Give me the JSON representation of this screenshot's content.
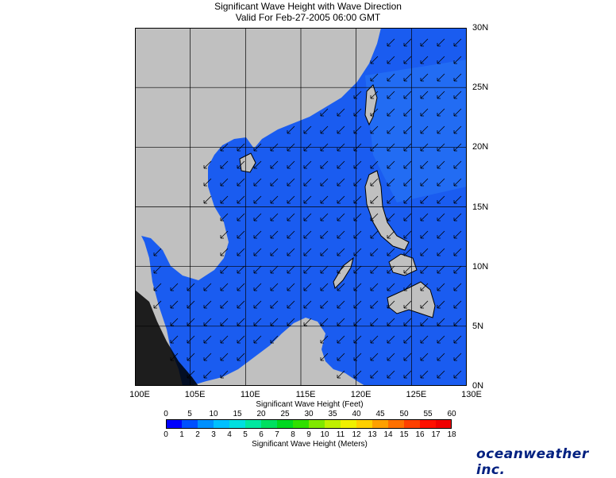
{
  "title": "Significant Wave Height with Wave Direction",
  "subtitle": "Valid For Feb-27-2005 06:00 GMT",
  "map": {
    "lat_labels": [
      "30N",
      "25N",
      "20N",
      "15N",
      "10N",
      "5N",
      "0N"
    ],
    "lon_labels": [
      "100E",
      "105E",
      "110E",
      "115E",
      "120E",
      "125E",
      "130E"
    ],
    "lon_range": [
      100,
      130
    ],
    "lat_range": [
      0,
      30
    ],
    "land_color": "#c0c0c0",
    "ocean_color": "#1a5cf0",
    "wave_direction": "from northeast"
  },
  "colorbar": {
    "feet_title": "Significant Wave Height (Feet)",
    "meters_title": "Significant Wave Height (Meters)",
    "feet_ticks": [
      "0",
      "5",
      "10",
      "15",
      "20",
      "25",
      "30",
      "35",
      "40",
      "45",
      "50",
      "55",
      "60"
    ],
    "meter_ticks": [
      "0",
      "1",
      "2",
      "3",
      "4",
      "5",
      "6",
      "7",
      "8",
      "9",
      "10",
      "11",
      "12",
      "13",
      "14",
      "15",
      "16",
      "17",
      "18"
    ],
    "colors": [
      "#0000ff",
      "#0050ff",
      "#0090ff",
      "#00c0ff",
      "#00e0e0",
      "#00e8a0",
      "#00e060",
      "#00d820",
      "#30e000",
      "#80e800",
      "#c0f000",
      "#f0f000",
      "#ffd000",
      "#ffa000",
      "#ff7000",
      "#ff4000",
      "#ff1000",
      "#f00000"
    ]
  },
  "brand": "oceanweather inc."
}
